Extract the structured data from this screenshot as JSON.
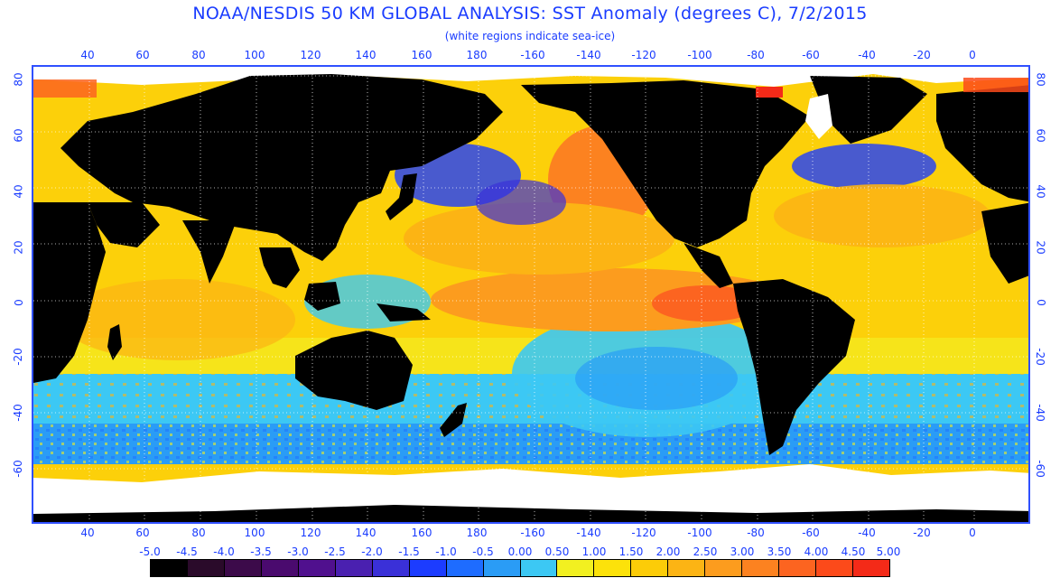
{
  "header": {
    "title": "NOAA/NESDIS 50 KM GLOBAL ANALYSIS: SST Anomaly (degrees C), 7/2/2015",
    "subtitle": "(white regions indicate sea-ice)"
  },
  "map": {
    "lon_ticks": [
      "40",
      "60",
      "80",
      "100",
      "120",
      "140",
      "160",
      "180",
      "-160",
      "-140",
      "-120",
      "-100",
      "-80",
      "-60",
      "-40",
      "-20",
      "0"
    ],
    "lat_ticks": [
      "80",
      "60",
      "40",
      "20",
      "0",
      "-20",
      "-40",
      "-60"
    ]
  },
  "colorbar": {
    "labels": [
      "-5.0",
      "-4.5",
      "-4.0",
      "-3.5",
      "-3.0",
      "-2.5",
      "-2.0",
      "-1.5",
      "-1.0",
      "-0.5",
      "0.00",
      "0.50",
      "1.00",
      "1.50",
      "2.00",
      "2.50",
      "3.00",
      "3.50",
      "4.00",
      "4.50",
      "5.00"
    ],
    "colors": [
      "#000000",
      "#2a0a2a",
      "#3c0a4a",
      "#4a0a6e",
      "#50108e",
      "#4a20b0",
      "#3a30d8",
      "#1c3cff",
      "#1e6cff",
      "#2a9cf6",
      "#3cc8f4",
      "#f2f020",
      "#fce20a",
      "#fccc08",
      "#fcb414",
      "#fc9c1e",
      "#fc8220",
      "#fc6420",
      "#fc4a1a",
      "#f42a18"
    ],
    "sea_ice_color": "#ffffff"
  }
}
